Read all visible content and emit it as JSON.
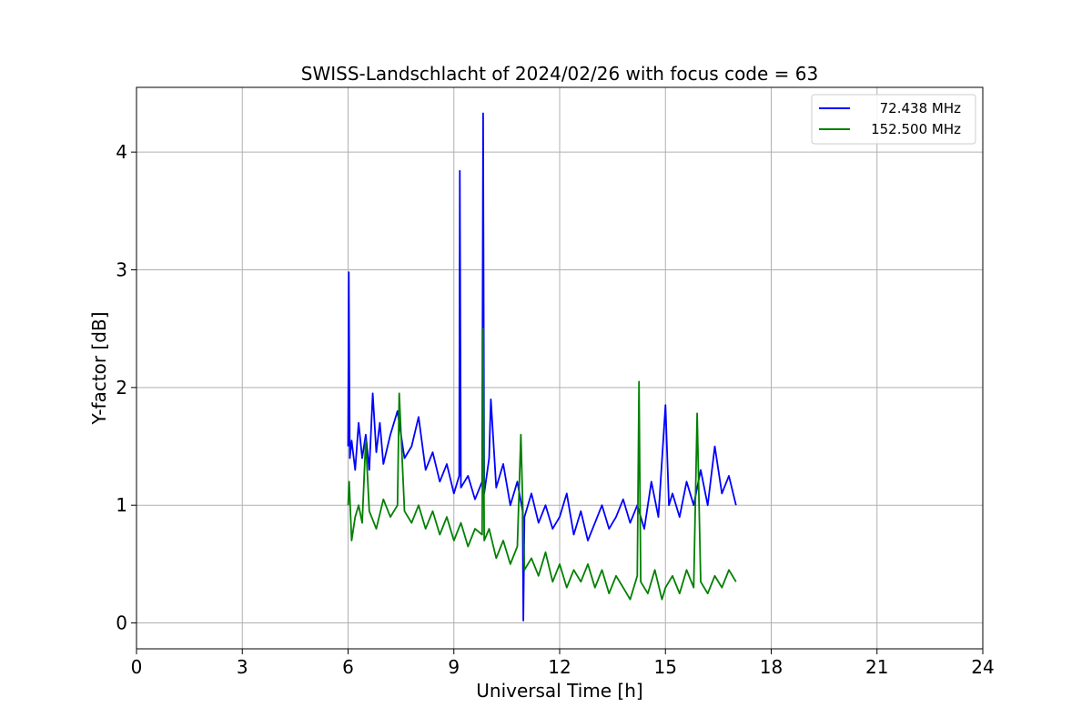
{
  "chart_data": {
    "type": "line",
    "title": "SWISS-Landschlacht of 2024/02/26 with focus code = 63",
    "xlabel": "Universal Time [h]",
    "ylabel": "Y-factor [dB]",
    "xlim": [
      0,
      24
    ],
    "ylim": [
      -0.22,
      4.55
    ],
    "xticks": [
      0,
      3,
      6,
      9,
      12,
      15,
      18,
      21,
      24
    ],
    "yticks": [
      0,
      1,
      2,
      3,
      4
    ],
    "grid": true,
    "legend_position": "top-right",
    "series": [
      {
        "name": "72.438 MHz",
        "color": "#0000ff",
        "x": [
          6.0,
          6.02,
          6.05,
          6.1,
          6.2,
          6.3,
          6.4,
          6.5,
          6.6,
          6.7,
          6.8,
          6.9,
          7.0,
          7.2,
          7.4,
          7.6,
          7.8,
          8.0,
          8.2,
          8.4,
          8.6,
          8.8,
          9.0,
          9.15,
          9.17,
          9.2,
          9.4,
          9.6,
          9.8,
          9.83,
          9.86,
          10.0,
          10.05,
          10.2,
          10.4,
          10.6,
          10.8,
          10.95,
          10.97,
          11.0,
          11.2,
          11.4,
          11.6,
          11.8,
          12.0,
          12.2,
          12.4,
          12.6,
          12.8,
          13.0,
          13.2,
          13.4,
          13.6,
          13.8,
          14.0,
          14.2,
          14.4,
          14.6,
          14.8,
          15.0,
          15.1,
          15.2,
          15.4,
          15.6,
          15.8,
          16.0,
          16.2,
          16.4,
          16.6,
          16.8,
          17.0
        ],
        "values": [
          1.5,
          2.98,
          1.4,
          1.55,
          1.3,
          1.7,
          1.4,
          1.6,
          1.3,
          1.95,
          1.45,
          1.7,
          1.35,
          1.6,
          1.8,
          1.4,
          1.5,
          1.75,
          1.3,
          1.45,
          1.2,
          1.35,
          1.1,
          1.25,
          3.84,
          1.15,
          1.25,
          1.05,
          1.2,
          4.33,
          1.1,
          1.4,
          1.9,
          1.15,
          1.35,
          1.0,
          1.2,
          0.95,
          0.02,
          0.9,
          1.1,
          0.85,
          1.0,
          0.8,
          0.9,
          1.1,
          0.75,
          0.95,
          0.7,
          0.85,
          1.0,
          0.8,
          0.9,
          1.05,
          0.85,
          1.0,
          0.8,
          1.2,
          0.9,
          1.85,
          1.0,
          1.1,
          0.9,
          1.2,
          1.0,
          1.3,
          1.0,
          1.5,
          1.1,
          1.25,
          1.0
        ]
      },
      {
        "name": "152.500 MHz",
        "color": "#008000",
        "x": [
          6.0,
          6.03,
          6.1,
          6.2,
          6.3,
          6.4,
          6.5,
          6.6,
          6.8,
          7.0,
          7.2,
          7.4,
          7.45,
          7.6,
          7.8,
          8.0,
          8.2,
          8.4,
          8.6,
          8.8,
          9.0,
          9.2,
          9.4,
          9.6,
          9.8,
          9.83,
          9.86,
          10.0,
          10.2,
          10.4,
          10.6,
          10.8,
          10.9,
          11.0,
          11.2,
          11.4,
          11.6,
          11.8,
          12.0,
          12.2,
          12.4,
          12.6,
          12.8,
          13.0,
          13.2,
          13.4,
          13.6,
          13.8,
          14.0,
          14.2,
          14.25,
          14.3,
          14.5,
          14.7,
          14.9,
          15.0,
          15.2,
          15.4,
          15.6,
          15.8,
          15.9,
          16.0,
          16.2,
          16.4,
          16.6,
          16.8,
          17.0
        ],
        "values": [
          1.0,
          1.2,
          0.7,
          0.9,
          1.0,
          0.85,
          1.55,
          0.95,
          0.8,
          1.05,
          0.9,
          1.0,
          1.95,
          0.95,
          0.85,
          1.0,
          0.8,
          0.95,
          0.75,
          0.9,
          0.7,
          0.85,
          0.65,
          0.8,
          0.75,
          2.5,
          0.7,
          0.8,
          0.55,
          0.7,
          0.5,
          0.65,
          1.6,
          0.45,
          0.55,
          0.4,
          0.6,
          0.35,
          0.5,
          0.3,
          0.45,
          0.35,
          0.5,
          0.3,
          0.45,
          0.25,
          0.4,
          0.3,
          0.2,
          0.4,
          2.05,
          0.35,
          0.25,
          0.45,
          0.2,
          0.3,
          0.4,
          0.25,
          0.45,
          0.3,
          1.78,
          0.35,
          0.25,
          0.4,
          0.3,
          0.45,
          0.35
        ]
      }
    ]
  }
}
